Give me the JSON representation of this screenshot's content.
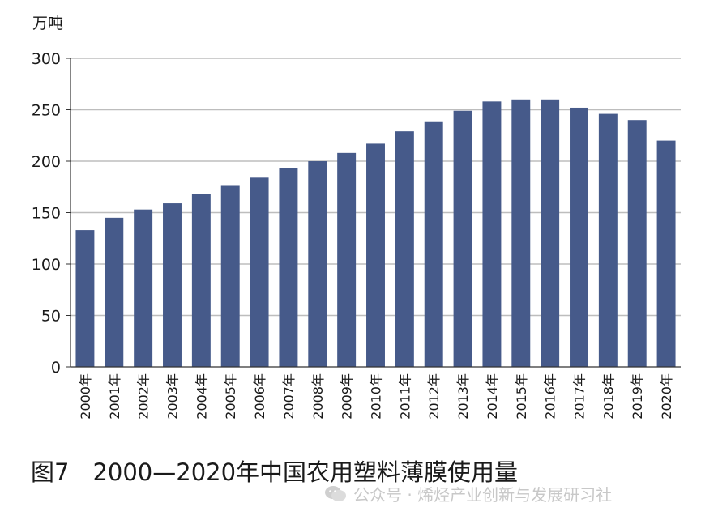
{
  "chart_data": {
    "type": "bar",
    "ylabel": "万吨",
    "ylim": [
      0,
      300
    ],
    "yticks": [
      0,
      50,
      100,
      150,
      200,
      250,
      300
    ],
    "grid": true,
    "bar_color": "#465a8a",
    "categories": [
      "2000年",
      "2001年",
      "2002年",
      "2003年",
      "2004年",
      "2005年",
      "2006年",
      "2007年",
      "2008年",
      "2009年",
      "2010年",
      "2011年",
      "2012年",
      "2013年",
      "2014年",
      "2015年",
      "2016年",
      "2017年",
      "2018年",
      "2019年",
      "2020年"
    ],
    "values": [
      133,
      145,
      153,
      159,
      168,
      176,
      184,
      193,
      200,
      208,
      217,
      229,
      238,
      249,
      258,
      260,
      260,
      252,
      246,
      240,
      220
    ]
  },
  "caption": "图7　2000—2020年中国农用塑料薄膜使用量",
  "watermark": {
    "text": "公众号 · 烯烃产业创新与发展研习社",
    "icon": "wechat-icon"
  }
}
